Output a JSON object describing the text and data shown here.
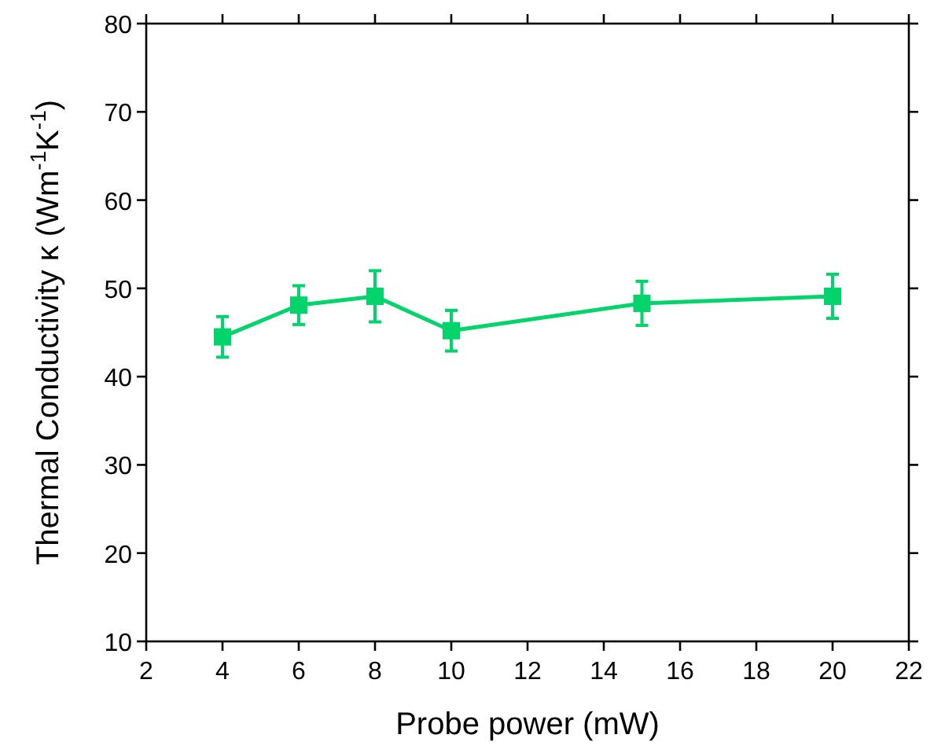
{
  "chart_data": {
    "type": "line",
    "xlabel": "Probe power (mW)",
    "ylabel": "Thermal Conductivity κ (Wm$^{-1}$K$^{-1}$)",
    "x": [
      4,
      6,
      8,
      10,
      15,
      20
    ],
    "series": [
      {
        "color": "#00d46a",
        "values": [
          44.5,
          48.1,
          49.1,
          45.2,
          48.3,
          49.1
        ],
        "errors": [
          2.3,
          2.2,
          2.9,
          2.3,
          2.5,
          2.5
        ]
      }
    ],
    "xlim": [
      2,
      22
    ],
    "xticks": [
      2,
      4,
      6,
      8,
      10,
      12,
      14,
      16,
      18,
      20,
      22
    ],
    "ylim": [
      10,
      80
    ],
    "yticks": [
      10,
      20,
      30,
      40,
      50,
      60,
      70,
      80
    ],
    "marker": "square"
  }
}
